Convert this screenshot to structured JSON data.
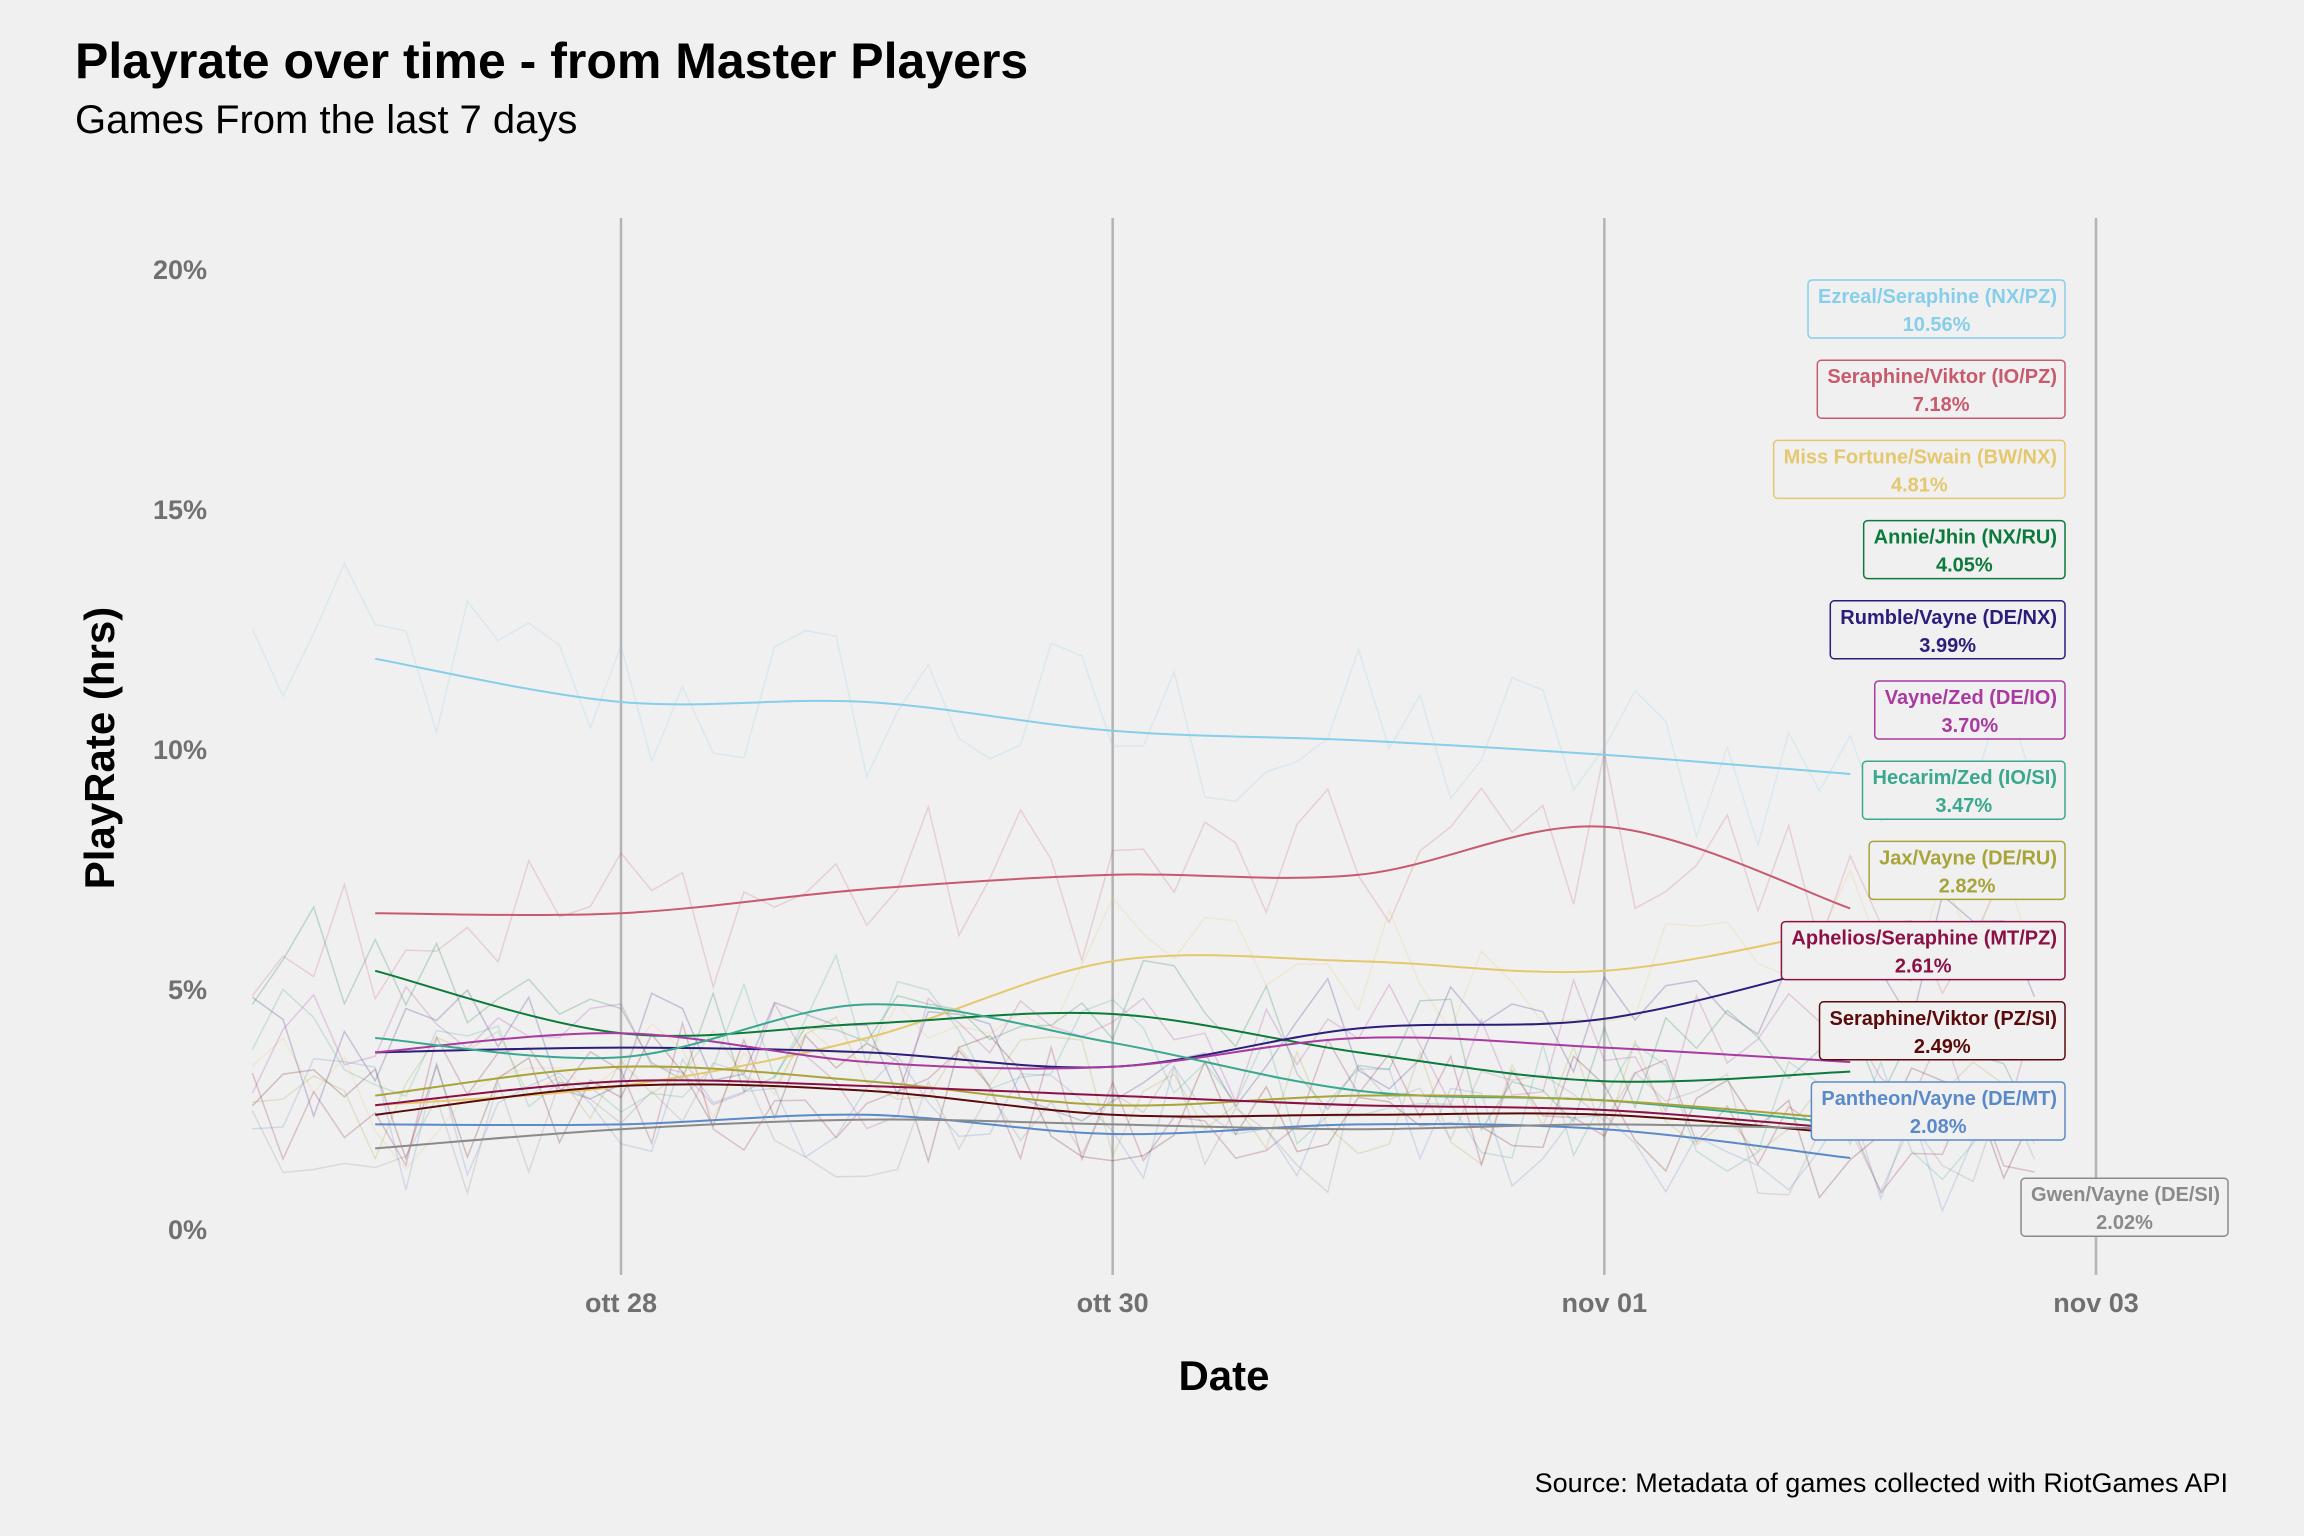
{
  "chart_data": {
    "type": "line",
    "title": "Playrate over time - from Master Players",
    "subtitle": "Games From the last 7 days",
    "caption": "Source: Metadata of games collected with RiotGames API",
    "xlabel": "Date",
    "ylabel": "PlayRate (hrs)",
    "ylim": [
      0,
      20
    ],
    "yticks": [
      "0%",
      "5%",
      "10%",
      "15%",
      "20%"
    ],
    "xtick_labels": [
      "ott 28",
      "ott 30",
      "nov 01",
      "nov 03"
    ],
    "xtick_dates": [
      "2021-10-28",
      "2021-10-30",
      "2021-11-01",
      "2021-11-03"
    ],
    "xlim": [
      "2021-10-26 18:00",
      "2021-11-03 12:00"
    ],
    "grid": "vertical major lines only",
    "legend": "none - direct end labels on right",
    "series": [
      {
        "name": "Ezreal/Seraphine (NX/PZ)",
        "label_value": "10.56%",
        "color": "#87ceeb",
        "trend": [
          [
            "2021-10-27 00:00",
            11.9
          ],
          [
            "2021-10-28 00:00",
            11.0
          ],
          [
            "2021-10-29 00:00",
            11.0
          ],
          [
            "2021-10-30 00:00",
            10.4
          ],
          [
            "2021-10-31 00:00",
            10.2
          ],
          [
            "2021-11-01 00:00",
            9.9
          ],
          [
            "2021-11-02 00:00",
            9.5
          ]
        ]
      },
      {
        "name": "Seraphine/Viktor (IO/PZ)",
        "label_value": "7.18%",
        "color": "#c85a6e",
        "trend": [
          [
            "2021-10-27 00:00",
            6.6
          ],
          [
            "2021-10-28 00:00",
            6.6
          ],
          [
            "2021-10-29 00:00",
            7.1
          ],
          [
            "2021-10-30 00:00",
            7.4
          ],
          [
            "2021-10-31 00:00",
            7.4
          ],
          [
            "2021-11-01 00:00",
            8.4
          ],
          [
            "2021-11-02 00:00",
            6.7
          ]
        ]
      },
      {
        "name": "Miss Fortune/Swain (BW/NX)",
        "label_value": "4.81%",
        "color": "#e5c86e",
        "trend": [
          [
            "2021-10-27 00:00",
            2.6
          ],
          [
            "2021-10-28 00:00",
            3.0
          ],
          [
            "2021-10-29 00:00",
            4.0
          ],
          [
            "2021-10-30 00:00",
            5.6
          ],
          [
            "2021-10-31 00:00",
            5.6
          ],
          [
            "2021-11-01 00:00",
            5.4
          ],
          [
            "2021-11-02 00:00",
            6.3
          ]
        ]
      },
      {
        "name": "Annie/Jhin (NX/RU)",
        "label_value": "4.05%",
        "color": "#0b7a3a",
        "trend": [
          [
            "2021-10-27 00:00",
            5.4
          ],
          [
            "2021-10-28 00:00",
            4.1
          ],
          [
            "2021-10-29 00:00",
            4.3
          ],
          [
            "2021-10-30 00:00",
            4.5
          ],
          [
            "2021-10-31 00:00",
            3.7
          ],
          [
            "2021-11-01 00:00",
            3.1
          ],
          [
            "2021-11-02 00:00",
            3.3
          ]
        ]
      },
      {
        "name": "Rumble/Vayne (DE/NX)",
        "label_value": "3.99%",
        "color": "#2b1d7a",
        "trend": [
          [
            "2021-10-27 00:00",
            3.7
          ],
          [
            "2021-10-28 00:00",
            3.8
          ],
          [
            "2021-10-29 00:00",
            3.7
          ],
          [
            "2021-10-30 00:00",
            3.4
          ],
          [
            "2021-10-31 00:00",
            4.2
          ],
          [
            "2021-11-01 00:00",
            4.4
          ],
          [
            "2021-11-02 00:00",
            5.6
          ]
        ]
      },
      {
        "name": "Vayne/Zed (DE/IO)",
        "label_value": "3.70%",
        "color": "#a83aa0",
        "trend": [
          [
            "2021-10-27 00:00",
            3.7
          ],
          [
            "2021-10-28 00:00",
            4.1
          ],
          [
            "2021-10-29 00:00",
            3.5
          ],
          [
            "2021-10-30 00:00",
            3.4
          ],
          [
            "2021-10-31 00:00",
            4.0
          ],
          [
            "2021-11-01 00:00",
            3.8
          ],
          [
            "2021-11-02 00:00",
            3.5
          ]
        ]
      },
      {
        "name": "Hecarim/Zed (IO/SI)",
        "label_value": "3.47%",
        "color": "#3aa88e",
        "trend": [
          [
            "2021-10-27 00:00",
            4.0
          ],
          [
            "2021-10-28 00:00",
            3.6
          ],
          [
            "2021-10-29 00:00",
            4.7
          ],
          [
            "2021-10-30 00:00",
            3.9
          ],
          [
            "2021-10-31 00:00",
            2.9
          ],
          [
            "2021-11-01 00:00",
            2.7
          ],
          [
            "2021-11-02 00:00",
            2.2
          ]
        ]
      },
      {
        "name": "Jax/Vayne (DE/RU)",
        "label_value": "2.82%",
        "color": "#a8a43a",
        "trend": [
          [
            "2021-10-27 00:00",
            2.8
          ],
          [
            "2021-10-28 00:00",
            3.4
          ],
          [
            "2021-10-29 00:00",
            3.1
          ],
          [
            "2021-10-30 00:00",
            2.6
          ],
          [
            "2021-10-31 00:00",
            2.8
          ],
          [
            "2021-11-01 00:00",
            2.7
          ],
          [
            "2021-11-02 00:00",
            2.3
          ]
        ]
      },
      {
        "name": "Aphelios/Seraphine (MT/PZ)",
        "label_value": "2.61%",
        "color": "#8a1045",
        "trend": [
          [
            "2021-10-27 00:00",
            2.6
          ],
          [
            "2021-10-28 00:00",
            3.1
          ],
          [
            "2021-10-29 00:00",
            3.0
          ],
          [
            "2021-10-30 00:00",
            2.8
          ],
          [
            "2021-10-31 00:00",
            2.6
          ],
          [
            "2021-11-01 00:00",
            2.5
          ],
          [
            "2021-11-02 00:00",
            2.1
          ]
        ]
      },
      {
        "name": "Seraphine/Viktor (PZ/SI)",
        "label_value": "2.49%",
        "color": "#5a0a0a",
        "trend": [
          [
            "2021-10-27 00:00",
            2.4
          ],
          [
            "2021-10-28 00:00",
            3.0
          ],
          [
            "2021-10-29 00:00",
            2.9
          ],
          [
            "2021-10-30 00:00",
            2.4
          ],
          [
            "2021-10-31 00:00",
            2.4
          ],
          [
            "2021-11-01 00:00",
            2.4
          ],
          [
            "2021-11-02 00:00",
            2.0
          ]
        ]
      },
      {
        "name": "Pantheon/Vayne (DE/MT)",
        "label_value": "2.08%",
        "color": "#5a8ac8",
        "trend": [
          [
            "2021-10-27 00:00",
            2.2
          ],
          [
            "2021-10-28 00:00",
            2.2
          ],
          [
            "2021-10-29 00:00",
            2.4
          ],
          [
            "2021-10-30 00:00",
            2.0
          ],
          [
            "2021-10-31 00:00",
            2.2
          ],
          [
            "2021-11-01 00:00",
            2.1
          ],
          [
            "2021-11-02 00:00",
            1.5
          ]
        ]
      },
      {
        "name": "Gwen/Vayne (DE/SI)",
        "label_value": "2.02%",
        "color": "#8a8a8a",
        "trend": [
          [
            "2021-10-27 00:00",
            1.7
          ],
          [
            "2021-10-28 00:00",
            2.1
          ],
          [
            "2021-10-29 00:00",
            2.3
          ],
          [
            "2021-10-30 00:00",
            2.2
          ],
          [
            "2021-10-31 00:00",
            2.1
          ],
          [
            "2021-11-01 00:00",
            2.2
          ],
          [
            "2021-11-02 00:00",
            2.1
          ]
        ]
      }
    ]
  }
}
